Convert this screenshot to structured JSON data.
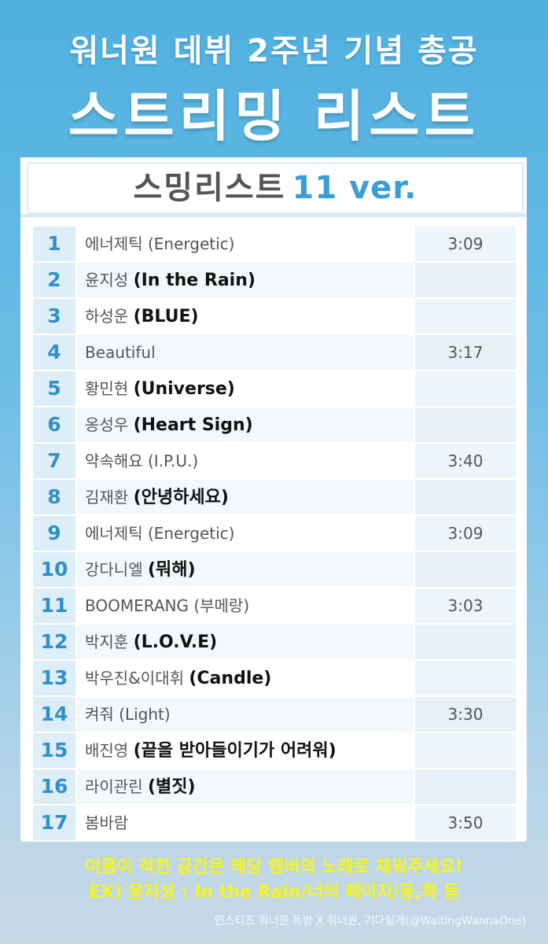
{
  "header": {
    "line1": "워너원 데뷔 2주년 기념 총공",
    "line2": "스트리밍 리스트"
  },
  "card": {
    "title_main": "스밍리스트",
    "title_version": "11 ver."
  },
  "tracks": [
    {
      "num": "1",
      "title": "에너제틱 (Energetic)",
      "song": "",
      "time": "3:09"
    },
    {
      "num": "2",
      "title": "윤지성 ",
      "song": "(In the Rain)",
      "time": ""
    },
    {
      "num": "3",
      "title": "하성운 ",
      "song": "(BLUE)",
      "time": ""
    },
    {
      "num": "4",
      "title": "Beautiful",
      "song": "",
      "time": "3:17"
    },
    {
      "num": "5",
      "title": "황민현 ",
      "song": "(Universe)",
      "time": ""
    },
    {
      "num": "6",
      "title": "옹성우 ",
      "song": "(Heart Sign)",
      "time": ""
    },
    {
      "num": "7",
      "title": "약속해요 (I.P.U.)",
      "song": "",
      "time": "3:40"
    },
    {
      "num": "8",
      "title": "김재환 ",
      "song": "(안녕하세요)",
      "time": ""
    },
    {
      "num": "9",
      "title": "에너제틱 (Energetic)",
      "song": "",
      "time": "3:09"
    },
    {
      "num": "10",
      "title": "강다니엘 ",
      "song": "(뭐해)",
      "time": ""
    },
    {
      "num": "11",
      "title": "BOOMERANG (부메랑)",
      "song": "",
      "time": "3:03"
    },
    {
      "num": "12",
      "title": "박지훈 ",
      "song": "(L.O.V.E)",
      "time": ""
    },
    {
      "num": "13",
      "title": "박우진&이대휘 ",
      "song": "(Candle)",
      "time": ""
    },
    {
      "num": "14",
      "title": "켜줘 (Light)",
      "song": "",
      "time": "3:30"
    },
    {
      "num": "15",
      "title": "배진영 ",
      "song": "(끝을 받아들이기가 어려워)",
      "time": ""
    },
    {
      "num": "16",
      "title": "라이관린 ",
      "song": "(별짓)",
      "time": ""
    },
    {
      "num": "17",
      "title": "봄바람",
      "song": "",
      "time": "3:50"
    }
  ],
  "notes": {
    "line1": "이름이 적힌 공간은 해당 멤버의 노래로 채워주세요!",
    "line2": "EX) 윤지성 : In the Rain/너의 페이지/동,화  등"
  },
  "credit": "인스티즈 워너원 독방 X 워너원, 기다릴게(@WaitingWannaOne)"
}
